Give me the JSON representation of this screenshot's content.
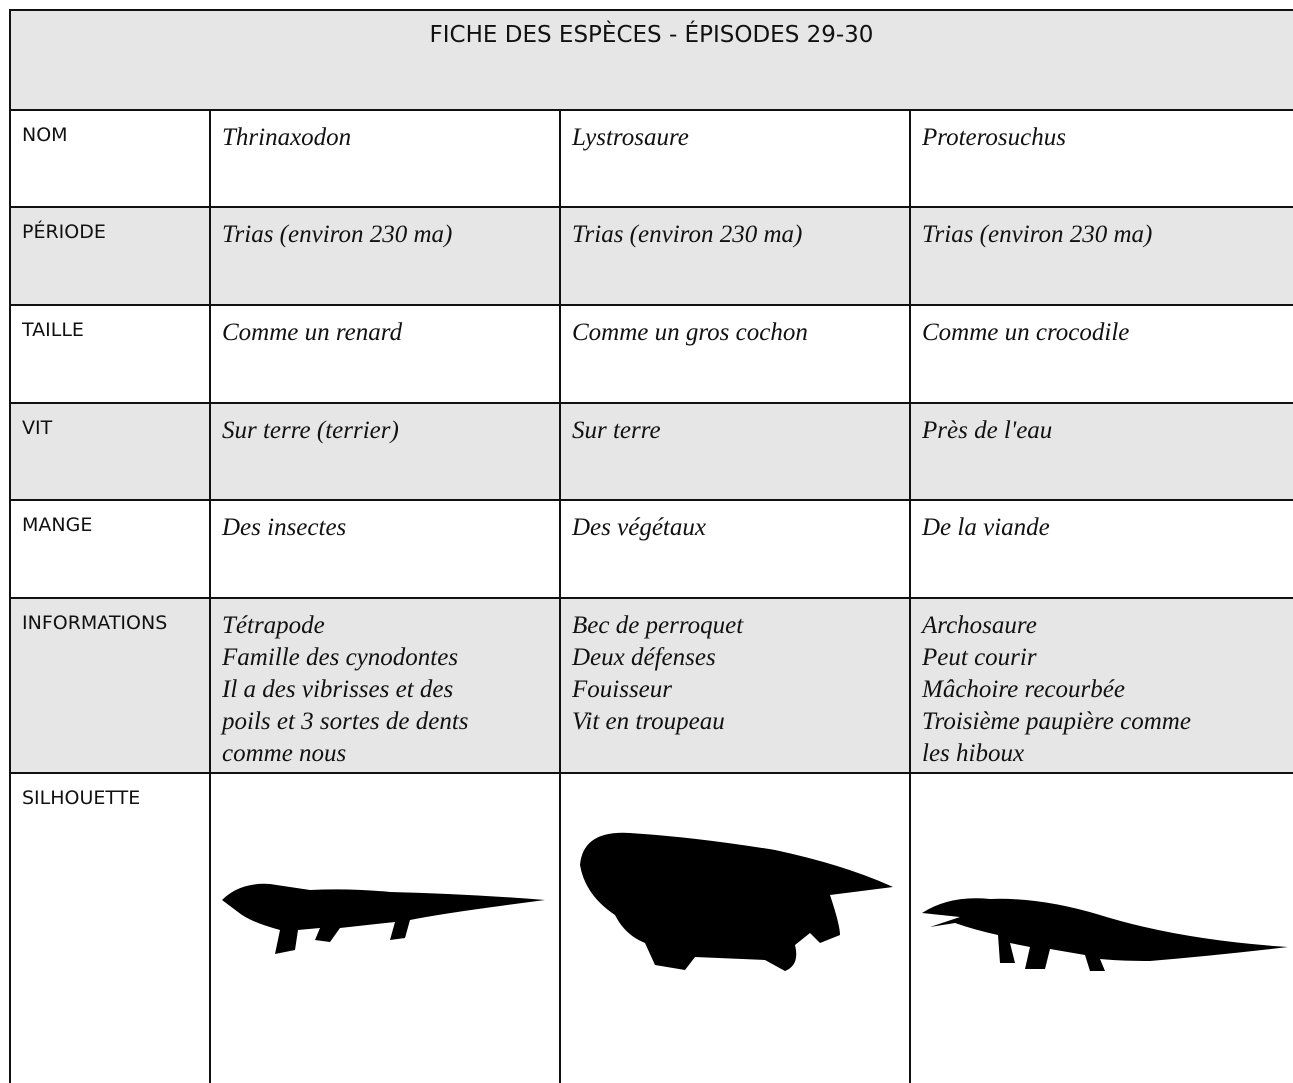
{
  "header": {
    "title": "FICHE DES ESPÈCES - ÉPISODES 29-30"
  },
  "table": {
    "rows": [
      {
        "label": "NOM",
        "cells": [
          [
            "Thrinaxodon"
          ],
          [
            "Lystrosaure"
          ],
          [
            "Proterosuchus"
          ]
        ]
      },
      {
        "label": "PÉRIODE",
        "cells": [
          [
            "Trias (environ 230 ma)"
          ],
          [
            "Trias (environ 230 ma)"
          ],
          [
            "Trias (environ 230 ma)"
          ]
        ]
      },
      {
        "label": "TAILLE",
        "cells": [
          [
            "Comme un renard"
          ],
          [
            "Comme un gros cochon"
          ],
          [
            "Comme un crocodile"
          ]
        ]
      },
      {
        "label": "VIT",
        "cells": [
          [
            "Sur terre (terrier)"
          ],
          [
            "Sur terre"
          ],
          [
            "Près de l'eau"
          ]
        ]
      },
      {
        "label": "MANGE",
        "cells": [
          [
            "Des insectes"
          ],
          [
            "Des végétaux"
          ],
          [
            "De la viande"
          ]
        ]
      },
      {
        "label": "INFORMATIONS",
        "cells": [
          [
            "Tétrapode",
            "Famille des cynodontes",
            "Il a des vibrisses et des",
            "poils et 3 sortes de dents",
            "comme nous"
          ],
          [
            "Bec de perroquet",
            "Deux défenses",
            "Fouisseur",
            "Vit en troupeau"
          ],
          [
            "Archosaure",
            "Peut courir",
            "Mâchoire recourbée",
            "Troisième paupière comme",
            "les hiboux"
          ]
        ]
      },
      {
        "label": "SILHOUETTE",
        "cells": []
      }
    ]
  }
}
